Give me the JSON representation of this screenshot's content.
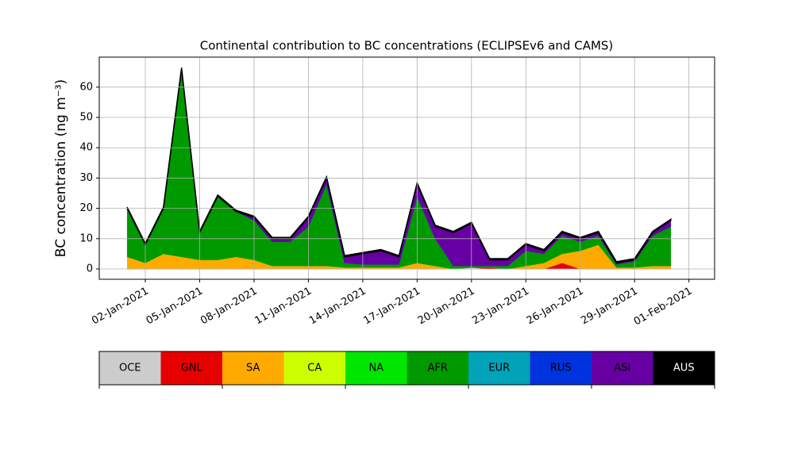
{
  "chart_data": {
    "type": "stacked_area",
    "title": "Continental contribution to BC concentrations (ECLIPSEv6 and CAMS)",
    "y_label": "BC concentration (ng m⁻³)",
    "x": [
      "2021-01-01",
      "2021-01-02",
      "2021-01-03",
      "2021-01-04",
      "2021-01-05",
      "2021-01-06",
      "2021-01-07",
      "2021-01-08",
      "2021-01-09",
      "2021-01-10",
      "2021-01-11",
      "2021-01-12",
      "2021-01-13",
      "2021-01-14",
      "2021-01-15",
      "2021-01-16",
      "2021-01-17",
      "2021-01-18",
      "2021-01-19",
      "2021-01-20",
      "2021-01-21",
      "2021-01-22",
      "2021-01-23",
      "2021-01-24",
      "2021-01-25",
      "2021-01-26",
      "2021-01-27",
      "2021-01-28",
      "2021-01-29",
      "2021-01-30",
      "2021-01-31"
    ],
    "xlim": [
      "2020-12-30T11:00",
      "2021-02-02T10:00"
    ],
    "xticks": [
      {
        "value": "2021-01-02",
        "label": "02-Jan-2021"
      },
      {
        "value": "2021-01-05",
        "label": "05-Jan-2021"
      },
      {
        "value": "2021-01-08",
        "label": "08-Jan-2021"
      },
      {
        "value": "2021-01-11",
        "label": "11-Jan-2021"
      },
      {
        "value": "2021-01-14",
        "label": "14-Jan-2021"
      },
      {
        "value": "2021-01-17",
        "label": "17-Jan-2021"
      },
      {
        "value": "2021-01-20",
        "label": "20-Jan-2021"
      },
      {
        "value": "2021-01-23",
        "label": "23-Jan-2021"
      },
      {
        "value": "2021-01-26",
        "label": "26-Jan-2021"
      },
      {
        "value": "2021-01-29",
        "label": "29-Jan-2021"
      },
      {
        "value": "2021-02-01",
        "label": "01-Feb-2021"
      }
    ],
    "ylim": [
      -3.4,
      69.9
    ],
    "yticks": [
      0,
      10,
      20,
      30,
      40,
      50,
      60
    ],
    "grid": true,
    "series": [
      {
        "name": "OCE",
        "color": "#cccccc",
        "values": [
          0,
          0,
          0,
          0,
          0,
          0,
          0,
          0,
          0,
          0,
          0,
          0,
          0,
          0,
          0,
          0,
          0,
          0,
          0,
          0.5,
          0,
          0,
          0,
          0,
          0,
          0,
          0,
          0,
          0,
          0,
          0
        ]
      },
      {
        "name": "GNL",
        "color": "#e60000",
        "values": [
          0,
          0,
          0,
          0,
          0,
          0,
          0,
          0,
          0,
          0,
          0,
          0,
          0,
          0,
          0,
          0,
          0,
          0,
          0,
          0,
          0.5,
          0,
          0,
          0,
          2,
          0,
          0,
          0,
          0,
          0,
          0
        ]
      },
      {
        "name": "SA",
        "color": "#ffaa00",
        "values": [
          4,
          2,
          5,
          4,
          3,
          3,
          4,
          3,
          1,
          1,
          1,
          1,
          0.5,
          0.5,
          0.5,
          0.5,
          2,
          1,
          0,
          0,
          0,
          0,
          1,
          2,
          3,
          6,
          8,
          0.5,
          0.5,
          1,
          1
        ]
      },
      {
        "name": "CA",
        "color": "#ccff00",
        "values": [
          0,
          0,
          0,
          0,
          0,
          0,
          0,
          0,
          0,
          0,
          0,
          0,
          0,
          0,
          0,
          0,
          0,
          0,
          0,
          0,
          0,
          0,
          0,
          0,
          0,
          0,
          0,
          0,
          0,
          0,
          0
        ]
      },
      {
        "name": "NA",
        "color": "#00e600",
        "values": [
          0,
          0,
          0,
          0,
          0,
          0,
          0,
          0,
          0,
          0,
          0,
          0,
          0,
          0,
          0,
          0,
          0,
          0,
          0,
          0,
          0,
          0,
          0,
          0,
          0,
          0,
          0,
          0,
          0,
          0,
          0
        ]
      },
      {
        "name": "AFR",
        "color": "#009900",
        "values": [
          16,
          6,
          15,
          62,
          9,
          21,
          15,
          13,
          8,
          8,
          13,
          27,
          1.5,
          1,
          1,
          1,
          22,
          9,
          1,
          0.5,
          0.5,
          1,
          5,
          3,
          6,
          3,
          3,
          1,
          2,
          10,
          13
        ]
      },
      {
        "name": "EUR",
        "color": "#00a3b8",
        "values": [
          0,
          0,
          0,
          0,
          0,
          0,
          0,
          0,
          0,
          0,
          0,
          0,
          0,
          0,
          0,
          0,
          0,
          0,
          0,
          0,
          0,
          0,
          0,
          0,
          0,
          0,
          0,
          0,
          0,
          0,
          0
        ]
      },
      {
        "name": "RUS",
        "color": "#0033dd",
        "values": [
          0,
          0,
          0,
          0,
          0,
          0,
          0,
          0,
          0,
          0,
          0,
          0,
          0,
          0,
          0,
          0,
          0,
          0,
          0,
          0,
          0,
          0,
          0,
          0,
          0,
          0,
          0,
          0,
          0,
          0,
          0
        ]
      },
      {
        "name": "ASI",
        "color": "#6600a3",
        "values": [
          0,
          0,
          0,
          0,
          0,
          0,
          0,
          1,
          1,
          1,
          3,
          2,
          2,
          3.5,
          4.5,
          2.5,
          4,
          4,
          11,
          14,
          2,
          2,
          2,
          1,
          1,
          1,
          1,
          0.5,
          0.5,
          1,
          2
        ]
      },
      {
        "name": "AUS",
        "color": "#000000",
        "values": [
          0.4,
          0.4,
          0.4,
          0.4,
          0.4,
          0.4,
          0.4,
          0.4,
          0.4,
          0.4,
          0.4,
          0.4,
          0.4,
          0.4,
          0.4,
          0.4,
          0.4,
          0.4,
          0.4,
          0.4,
          0.4,
          0.4,
          0.4,
          0.4,
          0.4,
          0.4,
          0.4,
          0.4,
          0.4,
          0.4,
          0.4
        ]
      }
    ]
  }
}
